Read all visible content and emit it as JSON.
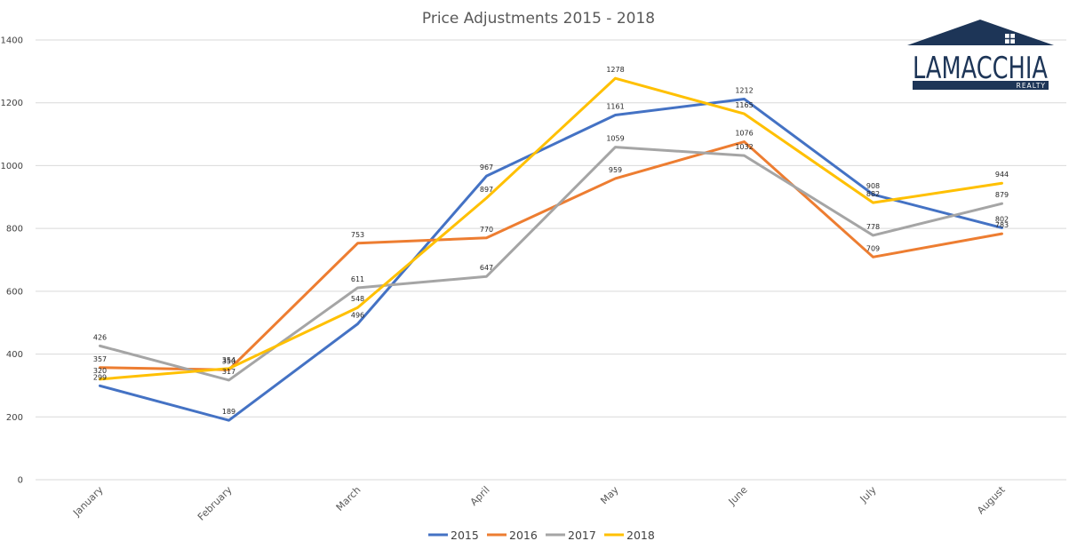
{
  "chart_data": {
    "type": "line",
    "title": "Price Adjustments 2015 - 2018",
    "categories": [
      "January",
      "February",
      "March",
      "April",
      "May",
      "June",
      "July",
      "August"
    ],
    "ylim": [
      0,
      1400
    ],
    "yticks": [
      0,
      200,
      400,
      600,
      800,
      1000,
      1200,
      1400
    ],
    "grid": true,
    "legend_position": "bottom",
    "series": [
      {
        "name": "2015",
        "color": "#4472c4",
        "values": [
          299,
          189,
          496,
          967,
          1161,
          1212,
          908,
          802
        ]
      },
      {
        "name": "2016",
        "color": "#ed7d31",
        "values": [
          357,
          350,
          753,
          770,
          959,
          1076,
          709,
          783
        ]
      },
      {
        "name": "2017",
        "color": "#a5a5a5",
        "values": [
          426,
          317,
          611,
          647,
          1059,
          1032,
          778,
          879
        ]
      },
      {
        "name": "2018",
        "color": "#ffc000",
        "values": [
          320,
          354,
          548,
          897,
          1278,
          1165,
          882,
          944
        ]
      }
    ]
  },
  "logo": {
    "brand": "LAMACCHIA",
    "sub": "REALTY"
  }
}
